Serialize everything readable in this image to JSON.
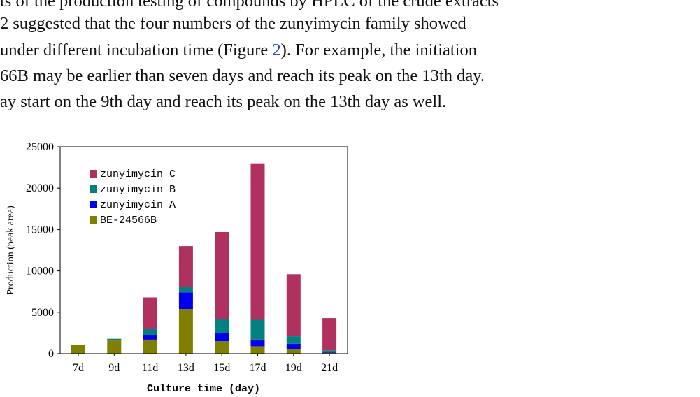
{
  "paragraph": {
    "line1": "ts of the production testing of compounds by HPLC of the crude extracts",
    "line2": "2 suggested that the four numbers of the zunyimycin family showed",
    "line3_pre": "under different incubation time (Figure ",
    "line3_ref": "2",
    "line3_post": "). For example, the initiation",
    "line4": "66B may be earlier than seven days and reach its peak on the 13th day.",
    "line5": "ay start on the 9th day and reach its peak on the 13th day as well."
  },
  "chart_data": {
    "type": "bar",
    "stacked": true,
    "categories": [
      "7d",
      "9d",
      "11d",
      "13d",
      "15d",
      "17d",
      "19d",
      "21d"
    ],
    "xlabel": "Culture time (day)",
    "ylabel": "Production (peak area)",
    "ylim": [
      0,
      25000
    ],
    "yticks": [
      "0",
      "5000",
      "10000",
      "15000",
      "20000",
      "25000"
    ],
    "yticks_values": [
      0,
      5000,
      10000,
      15000,
      20000,
      25000
    ],
    "legend_position": "top-left",
    "series": [
      {
        "name": "BE-24566B",
        "color": "#808000",
        "values": [
          1100,
          1600,
          1700,
          5400,
          1500,
          900,
          500,
          100
        ]
      },
      {
        "name": "zunyimycin A",
        "color": "#0000ee",
        "values": [
          0,
          0,
          500,
          2000,
          1000,
          800,
          700,
          100
        ]
      },
      {
        "name": "zunyimycin B",
        "color": "#008080",
        "values": [
          0,
          200,
          800,
          700,
          1700,
          2400,
          900,
          200
        ]
      },
      {
        "name": "zunyimycin C",
        "color": "#b03060",
        "values": [
          0,
          0,
          3800,
          4900,
          10500,
          18900,
          7500,
          3900
        ]
      }
    ]
  }
}
